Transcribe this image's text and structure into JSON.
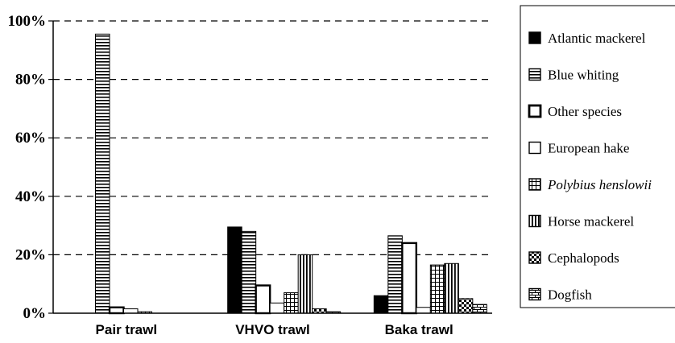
{
  "chart_data": {
    "type": "bar",
    "title": "",
    "xlabel": "",
    "ylabel": "",
    "ylim": [
      0,
      100
    ],
    "y_ticks": [
      "0%",
      "20%",
      "40%",
      "60%",
      "80%",
      "100%"
    ],
    "grid": "horizontal dashed",
    "legend_position": "right",
    "categories": [
      "Pair trawl",
      "VHVO trawl",
      "Baka trawl"
    ],
    "series": [
      {
        "name": "Atlantic mackerel",
        "pattern": "solid",
        "values": [
          0,
          29.5,
          6
        ]
      },
      {
        "name": "Blue whiting",
        "pattern": "hlines",
        "values": [
          95.5,
          28,
          26.5
        ]
      },
      {
        "name": "Other species",
        "pattern": "bold-outline",
        "values": [
          2,
          9.5,
          24
        ]
      },
      {
        "name": "European hake",
        "pattern": "white",
        "values": [
          1.5,
          3.5,
          2
        ]
      },
      {
        "name": "Polybius henslowii",
        "pattern": "grid",
        "italic": true,
        "values": [
          0.5,
          7,
          16.5
        ]
      },
      {
        "name": "Horse mackerel",
        "pattern": "vlines",
        "values": [
          0,
          20,
          17
        ]
      },
      {
        "name": "Cephalopods",
        "pattern": "checker",
        "values": [
          0,
          1.5,
          5
        ]
      },
      {
        "name": "Dogfish",
        "pattern": "brick",
        "values": [
          0,
          0.5,
          3
        ]
      }
    ]
  }
}
